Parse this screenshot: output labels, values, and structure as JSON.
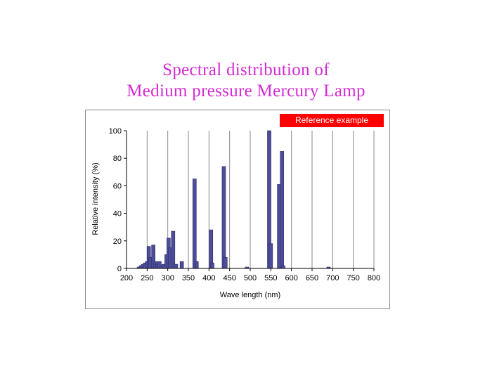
{
  "title": {
    "line1": "Spectral distribution of",
    "line2": "Medium pressure Mercury Lamp"
  },
  "badge": {
    "label": "Reference example"
  },
  "colors": {
    "title": "#d42ad4",
    "bar": "#4d4d9a",
    "badge": "#ff0000",
    "grid": "#888888"
  },
  "chart_data": {
    "type": "bar",
    "xlabel": "Wave length (nm)",
    "ylabel": "Relative intensity (%)",
    "xlim": [
      200,
      800
    ],
    "ylim": [
      0,
      100
    ],
    "xticks": [
      200,
      250,
      300,
      350,
      400,
      450,
      500,
      550,
      600,
      650,
      700,
      750,
      800
    ],
    "yticks": [
      0,
      20,
      40,
      60,
      80,
      100
    ],
    "grid": "vertical",
    "series": [
      {
        "x": [
          230,
          235,
          240,
          245,
          250,
          254,
          258,
          265,
          270,
          275,
          280,
          285,
          290,
          297,
          302,
          306,
          313,
          320,
          334,
          365,
          370,
          405,
          408,
          436,
          440,
          492,
          546,
          550,
          570,
          577,
          580,
          690
        ],
        "values": [
          1,
          2,
          3,
          4,
          5,
          16,
          8,
          17,
          5,
          3,
          5,
          2,
          3,
          10,
          22,
          15,
          27,
          3,
          5,
          65,
          5,
          28,
          4,
          74,
          8,
          1,
          100,
          18,
          61,
          85,
          2,
          1
        ]
      }
    ]
  }
}
